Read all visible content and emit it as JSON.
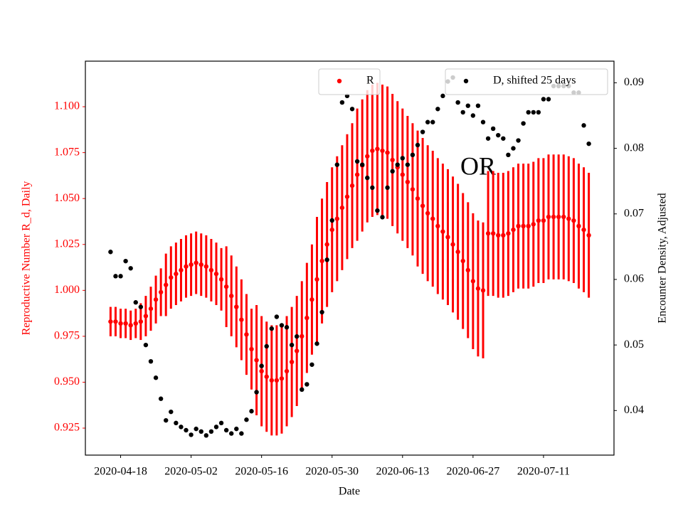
{
  "chart_data": {
    "type": "errorbar",
    "xlabel": "Date",
    "ylabel": "Reproductive Number R_d, Daily",
    "y2label": "Encounter Density, Adjusted",
    "annotations": [
      {
        "text": "OR"
      }
    ],
    "xlim": [
      "2020-04-11",
      "2020-07-25"
    ],
    "xticks": [
      "2020-04-18",
      "2020-05-02",
      "2020-05-16",
      "2020-05-30",
      "2020-06-13",
      "2020-06-27",
      "2020-07-11"
    ],
    "ylim": [
      0.9103,
      1.1248
    ],
    "yticks": [
      0.925,
      {
        "value": 0.95,
        "label": "0.950"
      },
      0.975,
      {
        "value": 1.0,
        "label": "1.000"
      },
      1.025,
      {
        "value": 1.05,
        "label": "1.050"
      },
      1.075,
      {
        "value": 1.1,
        "label": "1.100"
      }
    ],
    "y2lim": [
      0.0332,
      0.0933
    ],
    "y2ticks": [
      0.04,
      0.05,
      0.06,
      0.07,
      0.08,
      0.09
    ],
    "x": [
      "2020-04-16",
      "2020-04-17",
      "2020-04-18",
      "2020-04-19",
      "2020-04-20",
      "2020-04-21",
      "2020-04-22",
      "2020-04-23",
      "2020-04-24",
      "2020-04-25",
      "2020-04-26",
      "2020-04-27",
      "2020-04-28",
      "2020-04-29",
      "2020-04-30",
      "2020-05-01",
      "2020-05-02",
      "2020-05-03",
      "2020-05-04",
      "2020-05-05",
      "2020-05-06",
      "2020-05-07",
      "2020-05-08",
      "2020-05-09",
      "2020-05-10",
      "2020-05-11",
      "2020-05-12",
      "2020-05-13",
      "2020-05-14",
      "2020-05-15",
      "2020-05-16",
      "2020-05-17",
      "2020-05-18",
      "2020-05-19",
      "2020-05-20",
      "2020-05-21",
      "2020-05-22",
      "2020-05-23",
      "2020-05-24",
      "2020-05-25",
      "2020-05-26",
      "2020-05-27",
      "2020-05-28",
      "2020-05-29",
      "2020-05-30",
      "2020-05-31",
      "2020-06-01",
      "2020-06-02",
      "2020-06-03",
      "2020-06-04",
      "2020-06-05",
      "2020-06-06",
      "2020-06-07",
      "2020-06-08",
      "2020-06-09",
      "2020-06-10",
      "2020-06-11",
      "2020-06-12",
      "2020-06-13",
      "2020-06-14",
      "2020-06-15",
      "2020-06-16",
      "2020-06-17",
      "2020-06-18",
      "2020-06-19",
      "2020-06-20",
      "2020-06-21",
      "2020-06-22",
      "2020-06-23",
      "2020-06-24",
      "2020-06-25",
      "2020-06-26",
      "2020-06-27",
      "2020-06-28",
      "2020-06-29",
      "2020-06-30",
      "2020-07-01",
      "2020-07-02",
      "2020-07-03",
      "2020-07-04",
      "2020-07-05",
      "2020-07-06",
      "2020-07-07",
      "2020-07-08",
      "2020-07-09",
      "2020-07-10",
      "2020-07-11",
      "2020-07-12",
      "2020-07-13",
      "2020-07-14",
      "2020-07-15",
      "2020-07-16",
      "2020-07-17",
      "2020-07-18",
      "2020-07-19",
      "2020-07-20"
    ],
    "series": [
      {
        "name": "R",
        "color": "#ff0000",
        "axis": "y",
        "values": [
          0.983,
          0.983,
          0.982,
          0.982,
          0.981,
          0.982,
          0.983,
          0.986,
          0.99,
          0.995,
          0.999,
          1.003,
          1.007,
          1.009,
          1.011,
          1.013,
          1.014,
          1.015,
          1.014,
          1.013,
          1.011,
          1.009,
          1.006,
          1.002,
          0.997,
          0.991,
          0.984,
          0.976,
          0.968,
          0.962,
          0.956,
          0.953,
          0.951,
          0.951,
          0.952,
          0.956,
          0.961,
          0.967,
          0.975,
          0.985,
          0.995,
          1.006,
          1.016,
          1.025,
          1.033,
          1.039,
          1.045,
          1.051,
          1.057,
          1.063,
          1.068,
          1.073,
          1.076,
          1.077,
          1.076,
          1.075,
          1.071,
          1.067,
          1.063,
          1.059,
          1.055,
          1.05,
          1.046,
          1.042,
          1.039,
          1.035,
          1.032,
          1.029,
          1.025,
          1.021,
          1.016,
          1.011,
          1.005,
          1.001,
          1.0,
          1.031,
          1.031,
          1.03,
          1.03,
          1.031,
          1.033,
          1.035,
          1.035,
          1.035,
          1.036,
          1.038,
          1.038,
          1.04,
          1.04,
          1.04,
          1.04,
          1.039,
          1.038,
          1.035,
          1.033,
          1.03
        ],
        "errors": [
          0.008,
          0.008,
          0.008,
          0.008,
          0.008,
          0.008,
          0.01,
          0.011,
          0.012,
          0.013,
          0.013,
          0.017,
          0.017,
          0.017,
          0.017,
          0.017,
          0.017,
          0.017,
          0.017,
          0.017,
          0.017,
          0.017,
          0.017,
          0.022,
          0.022,
          0.022,
          0.022,
          0.022,
          0.022,
          0.03,
          0.03,
          0.03,
          0.03,
          0.03,
          0.03,
          0.03,
          0.03,
          0.03,
          0.03,
          0.03,
          0.03,
          0.034,
          0.034,
          0.034,
          0.034,
          0.034,
          0.034,
          0.034,
          0.034,
          0.036,
          0.036,
          0.036,
          0.036,
          0.036,
          0.036,
          0.036,
          0.036,
          0.036,
          0.036,
          0.036,
          0.036,
          0.037,
          0.037,
          0.037,
          0.037,
          0.037,
          0.037,
          0.037,
          0.037,
          0.037,
          0.037,
          0.037,
          0.037,
          0.037,
          0.037,
          0.034,
          0.034,
          0.034,
          0.034,
          0.034,
          0.034,
          0.034,
          0.034,
          0.034,
          0.034,
          0.034,
          0.034,
          0.034,
          0.034,
          0.034,
          0.034,
          0.034,
          0.034,
          0.034,
          0.034,
          0.034
        ]
      },
      {
        "name": "D, shifted 25 days",
        "color": "#000000",
        "axis": "y2",
        "values": [
          0.0642,
          0.0605,
          0.0605,
          0.0628,
          0.0617,
          0.0565,
          0.0558,
          0.05,
          0.0475,
          0.045,
          0.0418,
          0.0385,
          0.0398,
          0.0381,
          0.0375,
          0.037,
          0.0363,
          0.0372,
          0.0368,
          0.0362,
          0.0368,
          0.0375,
          0.0381,
          0.037,
          0.0365,
          0.0372,
          0.0365,
          0.0386,
          0.0399,
          0.0428,
          0.0468,
          0.0498,
          0.0525,
          0.0543,
          0.053,
          0.0527,
          0.05,
          0.0513,
          0.0432,
          0.044,
          0.047,
          0.0502,
          0.055,
          0.063,
          0.069,
          0.0775,
          0.087,
          0.088,
          0.086,
          0.078,
          0.0775,
          0.0755,
          0.074,
          0.0705,
          0.0695,
          0.074,
          0.0765,
          0.0775,
          0.0785,
          0.0775,
          0.079,
          0.0805,
          0.0825,
          0.084,
          0.084,
          0.086,
          0.088,
          0.0902,
          0.0908,
          0.087,
          0.0855,
          0.0865,
          0.085,
          0.0865,
          0.084,
          0.0815,
          0.083,
          0.082,
          0.0815,
          0.079,
          0.08,
          0.0812,
          0.0838,
          0.0855,
          0.0855,
          0.0855,
          0.0875,
          0.0875,
          0.0895,
          0.0895,
          0.0895,
          0.0895,
          0.0885,
          0.0885,
          0.0835,
          0.0807
        ]
      }
    ]
  }
}
